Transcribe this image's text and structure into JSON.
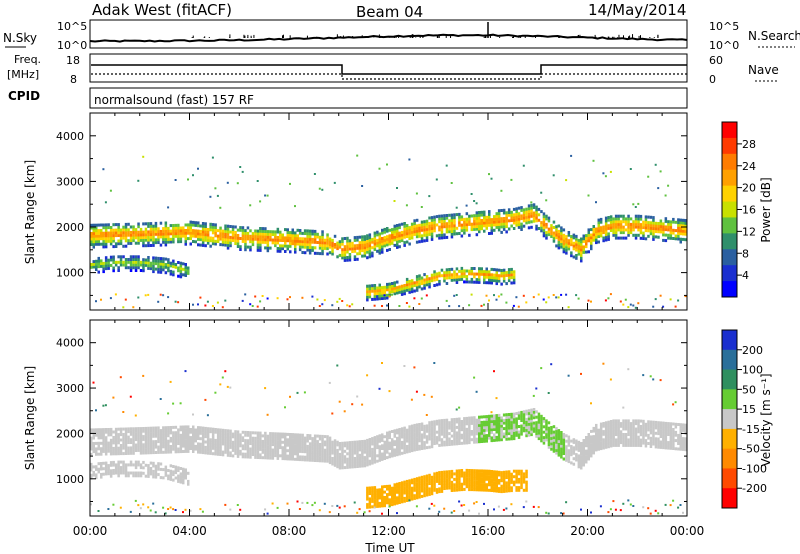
{
  "header": {
    "station": "Adak West (fitACF)",
    "beam": "Beam 04",
    "date": "14/May/2014"
  },
  "panels": {
    "nsky": {
      "label": "N.Sky",
      "right_label": "N.Search",
      "ticks_left": [
        "10^5",
        "10^0"
      ],
      "ticks_right": [
        "10^5",
        "10^0"
      ]
    },
    "freq": {
      "label_top": "Freq.",
      "label_unit": "[MHz]",
      "ticks_left": [
        "18",
        "8"
      ],
      "right_label": "Nave",
      "ticks_right": [
        "60",
        "0"
      ]
    },
    "cpid": {
      "label": "CPID",
      "text": "normalsound (fast) 157 RF"
    }
  },
  "colorbars": {
    "power": {
      "label": "Power [dB]",
      "ticks": [
        "28",
        "24",
        "20",
        "16",
        "12",
        "8",
        "4"
      ],
      "colors": [
        "#ff0000",
        "#ff3a00",
        "#ff7c00",
        "#ffa000",
        "#ffd200",
        "#c8e000",
        "#5fc13f",
        "#2f8f6b",
        "#2a5fa0",
        "#1a2fd0",
        "#0000ff"
      ]
    },
    "velocity": {
      "label": "Velocity [m s⁻¹]",
      "ticks": [
        "200",
        "100",
        "50",
        "15",
        "-15",
        "-50",
        "-100",
        "-200"
      ],
      "colors": [
        "#1a2fcf",
        "#2a6f9a",
        "#2f8f5f",
        "#66cc33",
        "#c8c8c8",
        "#ffb000",
        "#ff8a00",
        "#ff4a00",
        "#ff0000"
      ]
    }
  },
  "axes": {
    "xlabel": "Time UT",
    "x_ticks": [
      "00:00",
      "04:00",
      "08:00",
      "12:00",
      "16:00",
      "20:00",
      "00:00"
    ],
    "ylabel": "Slant Range [km]",
    "y_ticks": [
      "4000",
      "3000",
      "2000",
      "1000"
    ]
  },
  "chart_data": [
    {
      "type": "heatmap",
      "title": "Power",
      "xlabel": "Time UT",
      "ylabel": "Slant Range [km]",
      "xlim_hours": [
        0,
        24
      ],
      "ylim": [
        180,
        4500
      ],
      "colorbar": {
        "label": "Power [dB]",
        "range": [
          0,
          30
        ]
      },
      "echo_bands": [
        {
          "name": "main",
          "hours": [
            0,
            2,
            4,
            6,
            8,
            9.5,
            10,
            11,
            12,
            13,
            14,
            15,
            16,
            17,
            17.8,
            18.3,
            19,
            19.7,
            20.3,
            21,
            22,
            23,
            24
          ],
          "center_km": [
            1850,
            1880,
            1920,
            1800,
            1750,
            1700,
            1550,
            1600,
            1800,
            1950,
            2050,
            2100,
            2150,
            2200,
            2300,
            2050,
            1750,
            1550,
            1950,
            2050,
            2050,
            2000,
            1950
          ],
          "power_db": 24
        },
        {
          "name": "lower",
          "hours": [
            11,
            12,
            13,
            14,
            15,
            16,
            16.5,
            17
          ],
          "center_km": [
            600,
            650,
            800,
            950,
            1000,
            980,
            950,
            980
          ],
          "power_db": 22
        },
        {
          "name": "side",
          "hours": [
            0,
            1,
            2,
            3,
            4
          ],
          "center_km": [
            1200,
            1250,
            1250,
            1200,
            1050
          ],
          "power_db": 14
        }
      ]
    },
    {
      "type": "heatmap",
      "title": "Velocity",
      "xlabel": "Time UT",
      "ylabel": "Slant Range [km]",
      "xlim_hours": [
        0,
        24
      ],
      "ylim": [
        180,
        4500
      ],
      "colorbar": {
        "label": "Velocity [m s⁻¹]",
        "range": [
          -200,
          200
        ]
      },
      "dominant": "ground scatter (-15 to 15)",
      "features": [
        {
          "name": "lower band",
          "hours": [
            11,
            17.5
          ],
          "km": [
            500,
            1200
          ],
          "velocity": -40
        },
        {
          "name": "positive band",
          "hours": [
            15.5,
            19
          ],
          "km": [
            1400,
            2500
          ],
          "velocity": 50
        }
      ]
    }
  ]
}
